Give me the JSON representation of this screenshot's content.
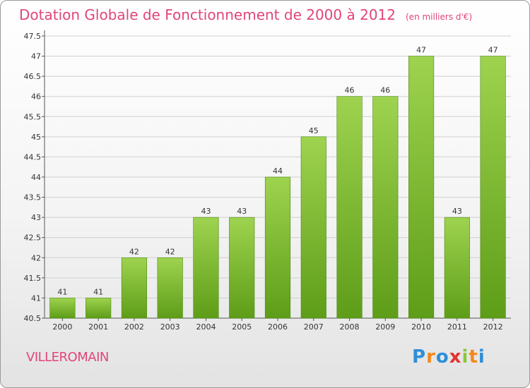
{
  "header": {
    "title": "Dotation Globale de Fonctionnement de 2000 à 2012",
    "subtitle": "(en milliers d'€)"
  },
  "footer": {
    "town": "VILLEROMAIN",
    "logo": {
      "letters": [
        "P",
        "r",
        "o",
        "x",
        "i",
        "t",
        "i"
      ],
      "colors": [
        "#2d8fd8",
        "#f28a1c",
        "#2d8fd8",
        "#e2342e",
        "#8cc63f",
        "#f28a1c",
        "#2d8fd8"
      ]
    }
  },
  "colors": {
    "accent": "#e0457a",
    "bar_top": "#9ed34f",
    "bar_bottom": "#5e9d18",
    "grid": "#d0d0d0"
  },
  "chart_data": {
    "type": "bar",
    "title": "Dotation Globale de Fonctionnement de 2000 à 2012",
    "subtitle": "(en milliers d'€)",
    "categories": [
      "2000",
      "2001",
      "2002",
      "2003",
      "2004",
      "2005",
      "2006",
      "2007",
      "2008",
      "2009",
      "2010",
      "2011",
      "2012"
    ],
    "values": [
      41,
      41,
      42,
      42,
      43,
      43,
      44,
      45,
      46,
      46,
      47,
      43,
      47
    ],
    "data_labels": [
      "41",
      "41",
      "42",
      "42",
      "43",
      "43",
      "44",
      "45",
      "46",
      "46",
      "47",
      "43",
      "47"
    ],
    "ylim": [
      40.5,
      47.5
    ],
    "yticks": [
      40.5,
      41,
      41.5,
      42,
      42.5,
      43,
      43.5,
      44,
      44.5,
      45,
      45.5,
      46,
      46.5,
      47,
      47.5
    ],
    "ytick_labels": [
      "40.5",
      "41",
      "41.5",
      "42",
      "42.5",
      "43",
      "43.5",
      "44",
      "44.5",
      "45",
      "45.5",
      "46",
      "46.5",
      "47",
      "47.5"
    ],
    "grid": true,
    "legend": "none"
  }
}
